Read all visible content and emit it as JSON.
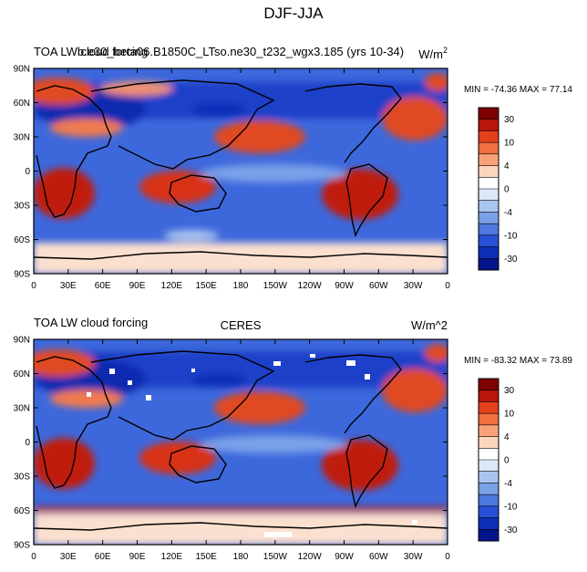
{
  "figure_title": "DJF-JJA",
  "chart_data": [
    {
      "type": "heatmap",
      "title_left": "TOA LW cloud forcing",
      "title_center": "b.e30_beta06.B1850C_LTso.ne30_t232_wgx3.185 (yrs 10-34)",
      "units": "W/m",
      "units_superscript": "2",
      "stats": "MIN = -74.36  MAX =  77.14",
      "min": -74.36,
      "max": 77.14,
      "lat_ticks": [
        "90N",
        "60N",
        "30N",
        "0",
        "30S",
        "60S",
        "90S"
      ],
      "lon_ticks": [
        "0",
        "30E",
        "60E",
        "90E",
        "120E",
        "150E",
        "180",
        "150W",
        "120W",
        "90W",
        "60W",
        "30W",
        "0"
      ],
      "colorbar_levels": [
        "30",
        "10",
        "4",
        "0",
        "-4",
        "-10",
        "-30"
      ],
      "colorbar_colors": [
        "#7f0000",
        "#b8150c",
        "#e5401c",
        "#f07040",
        "#f9a27a",
        "#fcd5be",
        "#ffffff",
        "#dce8f8",
        "#a9c4ef",
        "#7aa1e8",
        "#4d78e0",
        "#2650d6",
        "#0c2fb8",
        "#04148a"
      ]
    },
    {
      "type": "heatmap",
      "title_left": "TOA LW cloud forcing",
      "title_center": "CERES",
      "units": "W/m^2",
      "stats": "MIN = -83.32  MAX =  73.89",
      "min": -83.32,
      "max": 73.89,
      "lat_ticks": [
        "90N",
        "60N",
        "30N",
        "0",
        "30S",
        "60S",
        "90S"
      ],
      "lon_ticks": [
        "0",
        "30E",
        "60E",
        "90E",
        "120E",
        "150E",
        "180",
        "150W",
        "120W",
        "90W",
        "60W",
        "30W",
        "0"
      ],
      "colorbar_levels": [
        "30",
        "10",
        "4",
        "0",
        "-4",
        "-10",
        "-30"
      ],
      "colorbar_colors": [
        "#7f0000",
        "#b8150c",
        "#e5401c",
        "#f07040",
        "#f9a27a",
        "#fcd5be",
        "#ffffff",
        "#dce8f8",
        "#a9c4ef",
        "#7aa1e8",
        "#4d78e0",
        "#2650d6",
        "#0c2fb8",
        "#04148a"
      ]
    }
  ]
}
